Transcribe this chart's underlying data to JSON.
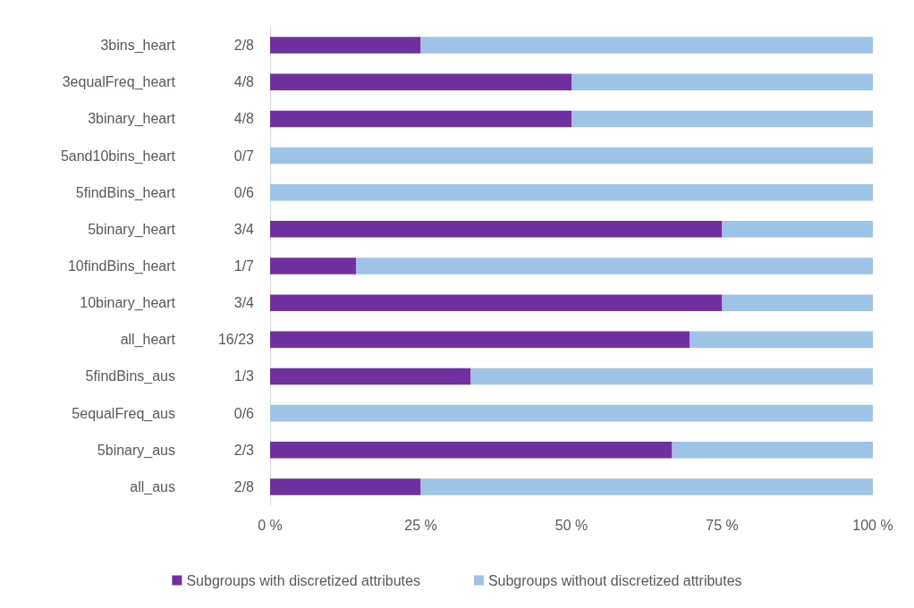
{
  "chart_data": {
    "type": "bar",
    "orientation": "horizontal",
    "stacked": true,
    "categories": [
      "3bins_heart",
      "3equalFreq_heart",
      "3binary_heart",
      "5and10bins_heart",
      "5findBins_heart",
      "5binary_heart",
      "10findBins_heart",
      "10binary_heart",
      "all_heart",
      "5findBins_aus",
      "5equalFreq_aus",
      "5binary_aus",
      "all_aus"
    ],
    "y2_categories": [
      "2/8",
      "4/8",
      "4/8",
      "0/7",
      "0/6",
      "3/4",
      "1/7",
      "3/4",
      "16/23",
      "1/3",
      "0/6",
      "2/3",
      "2/8"
    ],
    "series": [
      {
        "name": "Subgroups with discretized attributes",
        "color": "#7030a0",
        "values": [
          25,
          50,
          50,
          0,
          0,
          75,
          14.3,
          75,
          69.6,
          33.3,
          0,
          66.7,
          25
        ]
      },
      {
        "name": "Subgroups without discretized attributes",
        "color": "#9dc3e6",
        "values": [
          75,
          50,
          50,
          100,
          100,
          25,
          85.7,
          25,
          30.4,
          66.7,
          100,
          33.3,
          75
        ]
      }
    ],
    "xlim": [
      0,
      100
    ],
    "xticks": [
      {
        "value": 0,
        "label": "0 %"
      },
      {
        "value": 25,
        "label": "25 %"
      },
      {
        "value": 50,
        "label": "50 %"
      },
      {
        "value": 75,
        "label": "75 %"
      },
      {
        "value": 100,
        "label": "100 %"
      }
    ],
    "grid": false,
    "legend": "bottom"
  }
}
